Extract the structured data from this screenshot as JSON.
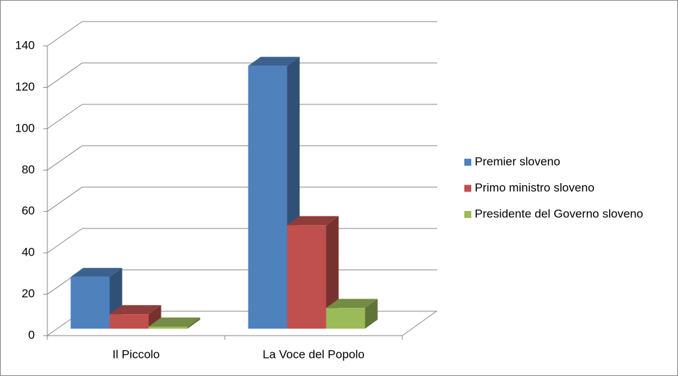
{
  "chart_data": {
    "type": "bar",
    "categories": [
      "Il Piccolo",
      "La Voce del Popolo"
    ],
    "series": [
      {
        "name": "Premier sloveno",
        "color": "#4f81bd",
        "values": [
          25,
          127
        ]
      },
      {
        "name": "Primo ministro sloveno",
        "color": "#c0504d",
        "values": [
          7,
          50
        ]
      },
      {
        "name": "Presidente del Governo sloveno",
        "color": "#9bbb59",
        "values": [
          1,
          10
        ]
      }
    ],
    "ylim": [
      0,
      140
    ],
    "yticks": [
      0,
      20,
      40,
      60,
      80,
      100,
      120,
      140
    ],
    "grid": true,
    "legend": "right"
  }
}
